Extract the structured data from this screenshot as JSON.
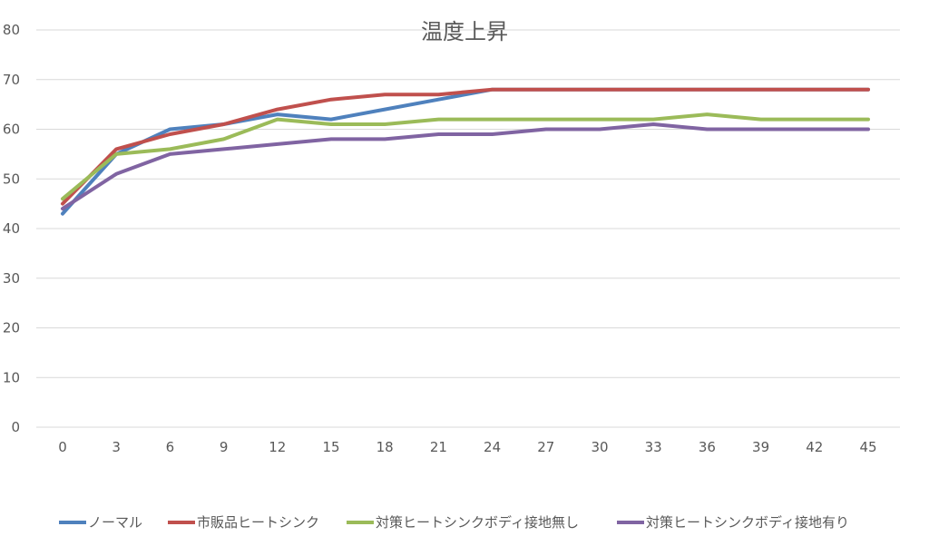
{
  "chart_data": {
    "type": "line",
    "title": "温度上昇",
    "xlabel": "",
    "ylabel": "",
    "x": [
      0,
      3,
      6,
      9,
      12,
      15,
      18,
      21,
      24,
      27,
      30,
      33,
      36,
      39,
      42,
      45
    ],
    "ylim": [
      0,
      80
    ],
    "yticks": [
      0,
      10,
      20,
      30,
      40,
      50,
      60,
      70,
      80
    ],
    "grid": true,
    "legend_position": "bottom",
    "series": [
      {
        "name": "ノーマル",
        "color": "#4f81bd",
        "values": [
          43,
          55,
          60,
          61,
          63,
          62,
          64,
          66,
          68,
          68,
          68,
          68,
          68,
          68,
          68,
          68
        ]
      },
      {
        "name": "市販品ヒートシンク",
        "color": "#c0504d",
        "values": [
          45,
          56,
          59,
          61,
          64,
          66,
          67,
          67,
          68,
          68,
          68,
          68,
          68,
          68,
          68,
          68
        ]
      },
      {
        "name": "対策ヒートシンクボディ接地無し",
        "color": "#9bbb59",
        "values": [
          46,
          55,
          56,
          58,
          62,
          61,
          61,
          62,
          62,
          62,
          62,
          62,
          63,
          62,
          62,
          62
        ]
      },
      {
        "name": "対策ヒートシンクボディ接地有り",
        "color": "#8064a2",
        "values": [
          44,
          51,
          55,
          56,
          57,
          58,
          58,
          59,
          59,
          60,
          60,
          61,
          60,
          60,
          60,
          60
        ]
      }
    ]
  }
}
